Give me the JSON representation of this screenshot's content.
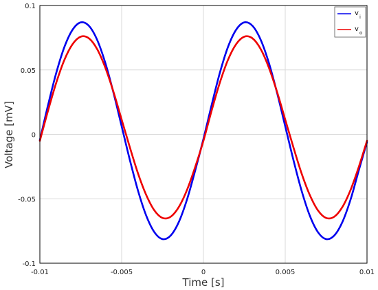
{
  "chart_data": {
    "type": "line",
    "title": "",
    "xlabel": "Time [s]",
    "ylabel": "Voltage [mV]",
    "xlim": [
      -0.01,
      0.01
    ],
    "ylim": [
      -0.1,
      0.1
    ],
    "grid": true,
    "legend_position": "top-right",
    "x_ticks": [
      {
        "value": -0.01,
        "label": "-0.01"
      },
      {
        "value": -0.005,
        "label": "-0.005"
      },
      {
        "value": 0,
        "label": "0"
      },
      {
        "value": 0.005,
        "label": "0.005"
      },
      {
        "value": 0.01,
        "label": "0.01"
      }
    ],
    "y_ticks": [
      {
        "value": 0.1,
        "label": "0.1"
      },
      {
        "value": 0.05,
        "label": "0.05"
      },
      {
        "value": 0,
        "label": "0"
      },
      {
        "value": -0.05,
        "label": "-0.05"
      },
      {
        "value": -0.1,
        "label": "-0.1"
      }
    ],
    "x": [
      -0.01,
      -0.0095,
      -0.009,
      -0.0085,
      -0.008,
      -0.0075,
      -0.007,
      -0.0065,
      -0.006,
      -0.0055,
      -0.005,
      -0.0045,
      -0.004,
      -0.0035,
      -0.003,
      -0.0025,
      -0.002,
      -0.0015,
      -0.001,
      -0.0005,
      0,
      0.0005,
      0.001,
      0.0015,
      0.002,
      0.0025,
      0.003,
      0.0035,
      0.004,
      0.0045,
      0.005,
      0.0055,
      0.006,
      0.0065,
      0.007,
      0.0075,
      0.008,
      0.0085,
      0.009,
      0.0095,
      0.01
    ],
    "series": [
      {
        "name": "v",
        "subscript": "i",
        "color": "#0000ee",
        "values": [
          -0.0045,
          0.0227,
          0.0476,
          0.0678,
          0.0812,
          0.0869,
          0.0842,
          0.0734,
          0.0555,
          0.0323,
          0.0063,
          -0.0198,
          -0.0437,
          -0.063,
          -0.0759,
          -0.0813,
          -0.0785,
          -0.0679,
          -0.0504,
          -0.0279,
          -0.0036,
          0.0227,
          0.0476,
          0.0678,
          0.0812,
          0.0869,
          0.0842,
          0.0734,
          0.0555,
          0.0323,
          0.0063,
          -0.0198,
          -0.0437,
          -0.063,
          -0.0759,
          -0.0813,
          -0.0785,
          -0.0679,
          -0.0504,
          -0.0279,
          -0.006
        ]
      },
      {
        "name": "v",
        "subscript": "o",
        "color": "#ee0000",
        "values": [
          -0.005,
          0.0184,
          0.04,
          0.0578,
          0.07,
          0.0758,
          0.0745,
          0.0662,
          0.0518,
          0.033,
          0.0115,
          -0.01,
          -0.0303,
          -0.047,
          -0.059,
          -0.0649,
          -0.0639,
          -0.0563,
          -0.043,
          -0.0252,
          -0.005,
          0.0184,
          0.04,
          0.0578,
          0.07,
          0.0758,
          0.0745,
          0.0662,
          0.0518,
          0.033,
          0.0115,
          -0.01,
          -0.0303,
          -0.047,
          -0.059,
          -0.0649,
          -0.0639,
          -0.0563,
          -0.043,
          -0.0252,
          -0.005
        ]
      }
    ]
  }
}
